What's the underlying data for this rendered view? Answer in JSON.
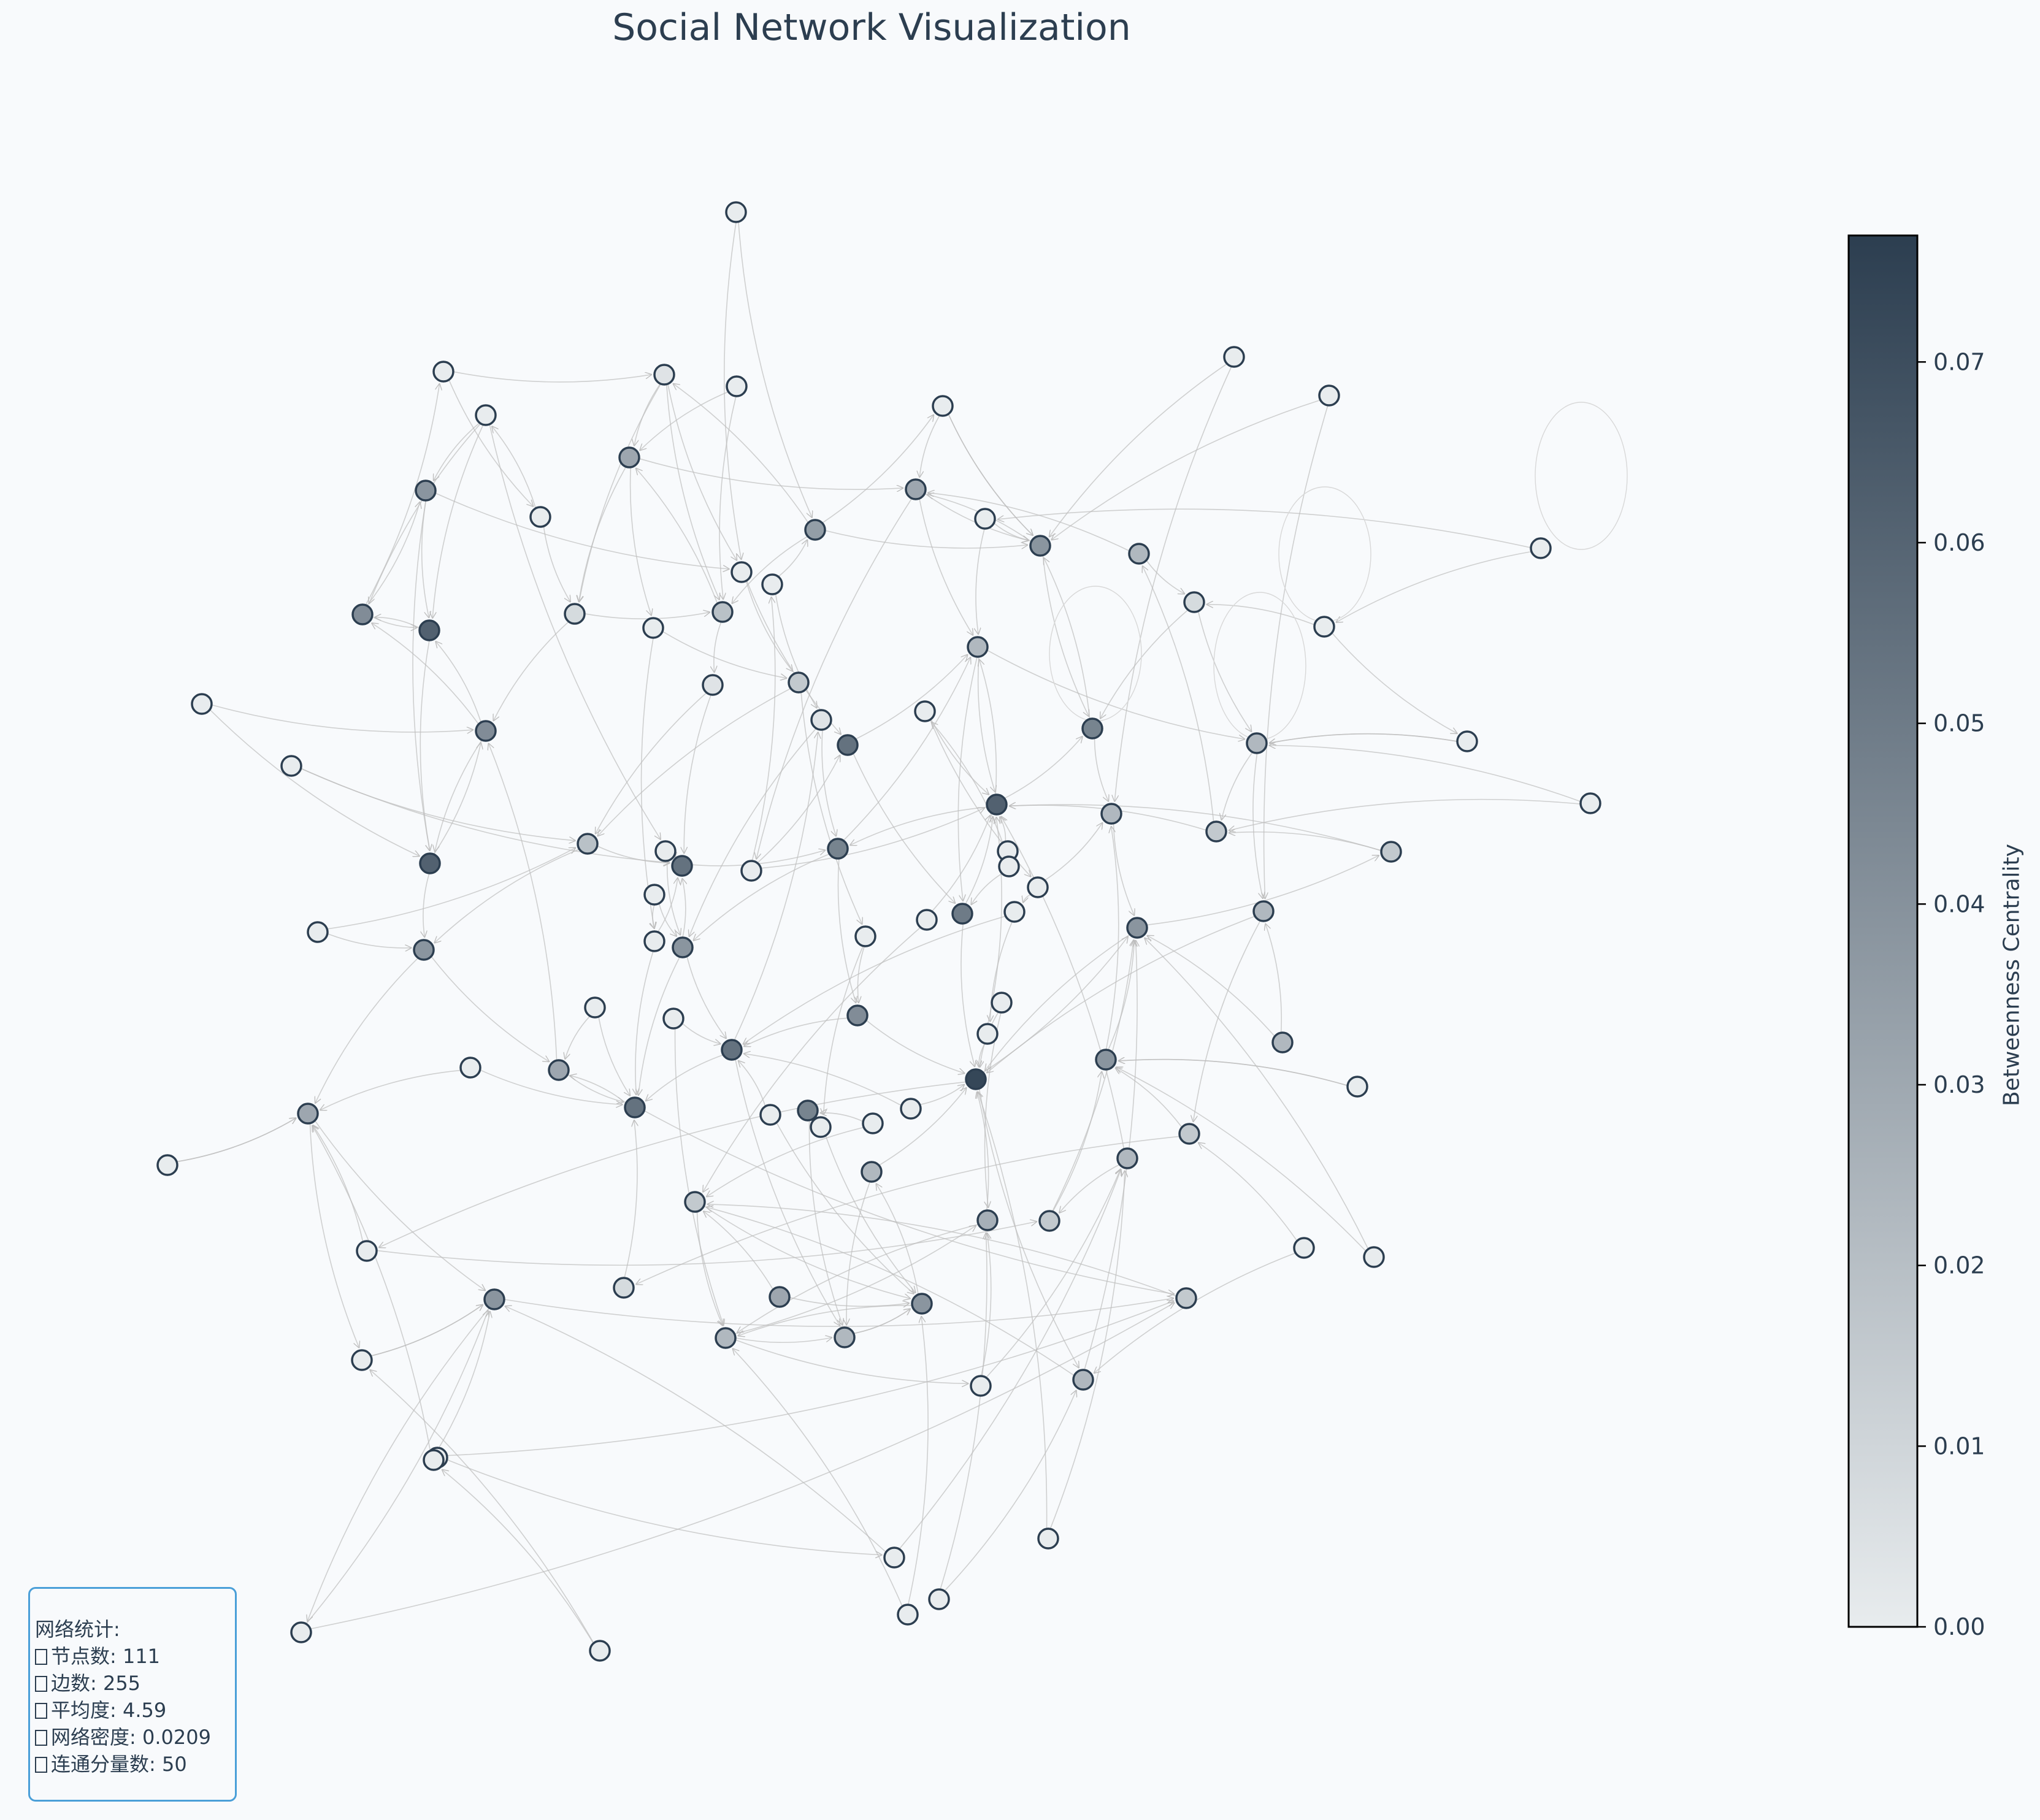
{
  "title": "Social Network Visualization",
  "colorbar": {
    "label": "Betweenness Centrality",
    "ticks": [
      "0.00",
      "0.01",
      "0.02",
      "0.03",
      "0.04",
      "0.05",
      "0.06",
      "0.07"
    ],
    "tick_values": [
      0,
      0.01,
      0.02,
      0.03,
      0.04,
      0.05,
      0.06,
      0.07
    ],
    "min": 0,
    "max": 0.077,
    "color_low": "#e8ecee",
    "color_high": "#2c3e50"
  },
  "stats": {
    "heading": "网络统计:",
    "lines": [
      "节点数: 111",
      "边数: 255",
      "平均度: 4.59",
      "网络密度: 0.0209",
      "连通分量数: 50"
    ]
  },
  "colors": {
    "background": "#f8fafc",
    "edge": "#bdbdbd",
    "node_stroke": "#2c3e50",
    "title": "#2c3e50",
    "legend_border": "#4a9fd8"
  }
}
